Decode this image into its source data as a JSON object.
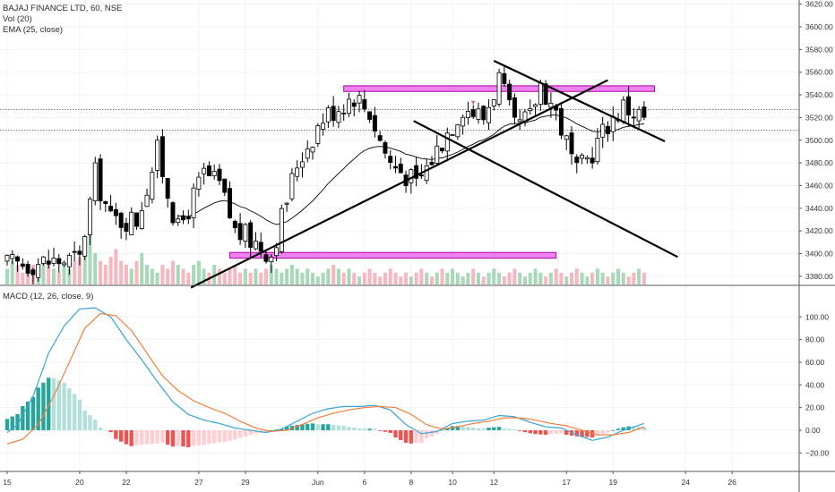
{
  "legend": {
    "title": "BAJAJ FINANCE LTD, 60, NSE",
    "vol": "Vol (20)",
    "ema": "EMA (25, close)",
    "macd": "MACD (12, 26, close, 9)"
  },
  "colors": {
    "up": "#000000",
    "down": "#000000",
    "ema": "#000000",
    "vol_up": "#a8d8b9",
    "vol_down": "#f7b7c0",
    "zone_fill": "#ee82ee",
    "zone_stroke": "#b000b0",
    "trendline": "#000000",
    "macd_line": "#3aa3d6",
    "signal_line": "#f0803c",
    "hist_pos_strong": "#26a69a",
    "hist_pos_weak": "#b2dfdb",
    "hist_neg_strong": "#ef5350",
    "hist_neg_weak": "#ffcdd2",
    "marker": "#f06080"
  },
  "chart_data": [
    {
      "type": "candlestick",
      "title": "BAJAJ FINANCE LTD, 60, NSE",
      "x_tick_labels": [
        "15",
        "20",
        "22",
        "27",
        "29",
        "Jun",
        "6",
        "8",
        "10",
        "12",
        "17",
        "19",
        "24",
        "26"
      ],
      "x_tick_bars": [
        0,
        14,
        23,
        37,
        46,
        60,
        69,
        78,
        86,
        94,
        108,
        117,
        131,
        140
      ],
      "y_ticks": [
        3380,
        3400,
        3420,
        3440,
        3460,
        3480,
        3500,
        3520,
        3540,
        3560,
        3580,
        3600,
        3620
      ],
      "ylim": [
        3370,
        3622
      ],
      "horizontal_lines": [
        3527,
        3509
      ],
      "anchors": {
        "bar": [
          0,
          14,
          17,
          20,
          25,
          29,
          33,
          38,
          41,
          44,
          48,
          51,
          56,
          61,
          64,
          67,
          70,
          72,
          74,
          77,
          79,
          84,
          88,
          92,
          95,
          98,
          101,
          103,
          106,
          110,
          113,
          116,
          119,
          123
        ],
        "close": [
          3390,
          3395,
          3470,
          3430,
          3430,
          3490,
          3420,
          3470,
          3460,
          3420,
          3410,
          3400,
          3480,
          3520,
          3530,
          3540,
          3525,
          3500,
          3480,
          3470,
          3460,
          3500,
          3530,
          3520,
          3555,
          3510,
          3520,
          3550,
          3525,
          3470,
          3490,
          3515,
          3530,
          3520
        ]
      },
      "ema_period": 25,
      "zones": [
        {
          "bar_start": 43,
          "bar_end": 106,
          "low": 3396,
          "high": 3401
        },
        {
          "bar_start": 65,
          "bar_end": 125,
          "low": 3543,
          "high": 3548
        }
      ],
      "trendlines": [
        {
          "x1": 35.5,
          "y1": 3370,
          "x2": 116,
          "y2": 3553
        },
        {
          "x1": 78.5,
          "y1": 3517,
          "x2": 129.5,
          "y2": 3397
        },
        {
          "x1": 94,
          "y1": 3570,
          "x2": 127,
          "y2": 3499
        }
      ],
      "markers": [
        {
          "bar": 90,
          "price": 3533
        }
      ]
    },
    {
      "type": "bar",
      "title": "Vol (20)",
      "note": "volume histogram along bottom of price pane",
      "values_relative": [
        4,
        6,
        5,
        3,
        4,
        5,
        3,
        6,
        5,
        4,
        3,
        5,
        4,
        6,
        7,
        9,
        14,
        8,
        6,
        5,
        7,
        9,
        6,
        5,
        4,
        6,
        8,
        5,
        4,
        3,
        5,
        4,
        6,
        5,
        4,
        3,
        5,
        6,
        4,
        3,
        5,
        4,
        3,
        4,
        5,
        3,
        4,
        3,
        4,
        3,
        4,
        5,
        4,
        3,
        4,
        5,
        4,
        3,
        4,
        3,
        2,
        3,
        4,
        5,
        4,
        3,
        4,
        3,
        2,
        3,
        4,
        3,
        2,
        3,
        4,
        3,
        2,
        3,
        2,
        3,
        4,
        3,
        2,
        3,
        4,
        3,
        4,
        3,
        2,
        3,
        4,
        3,
        2,
        3,
        4,
        3,
        2,
        3,
        4,
        3,
        2,
        3,
        4,
        3,
        2,
        3,
        4,
        3,
        2,
        3,
        4,
        3,
        2,
        3,
        4,
        3,
        2,
        3,
        4,
        3,
        2,
        3,
        4,
        3,
        2,
        3
      ]
    },
    {
      "type": "line",
      "title": "MACD (12, 26, close, 9)",
      "y_ticks": [
        -20,
        0,
        20,
        40,
        60,
        80,
        100
      ],
      "ylim": [
        -36,
        112
      ],
      "macd": {
        "bar": [
          0,
          2,
          5,
          8,
          11,
          14,
          17,
          20,
          23,
          26,
          29,
          32,
          35,
          38,
          41,
          44,
          47,
          50,
          53,
          56,
          59,
          62,
          65,
          68,
          71,
          74,
          77,
          80,
          83,
          86,
          89,
          92,
          95,
          98,
          101,
          104,
          107,
          110,
          113,
          116,
          119,
          123
        ],
        "values": [
          -2,
          5,
          30,
          68,
          92,
          107,
          108,
          100,
          80,
          62,
          43,
          25,
          14,
          9,
          6,
          2,
          0,
          -2,
          1,
          8,
          15,
          19,
          21,
          21,
          22,
          18,
          5,
          -3,
          -1,
          6,
          8,
          9,
          13,
          12,
          7,
          3,
          2,
          -4,
          -9,
          -6,
          0,
          6
        ]
      },
      "signal": {
        "bar": [
          0,
          3,
          6,
          9,
          12,
          15,
          18,
          21,
          24,
          27,
          30,
          33,
          36,
          39,
          42,
          45,
          48,
          51,
          54,
          57,
          60,
          63,
          66,
          69,
          72,
          75,
          78,
          81,
          84,
          87,
          90,
          93,
          96,
          99,
          102,
          105,
          108,
          111,
          114,
          117,
          120,
          123
        ],
        "values": [
          -12,
          -8,
          5,
          30,
          60,
          90,
          103,
          101,
          88,
          68,
          48,
          35,
          26,
          20,
          15,
          8,
          2,
          -1,
          0,
          5,
          11,
          15,
          18,
          20,
          21,
          20,
          14,
          5,
          1,
          3,
          6,
          8,
          11,
          11,
          9,
          6,
          4,
          0,
          -4,
          -4,
          -2,
          3
        ]
      }
    }
  ]
}
